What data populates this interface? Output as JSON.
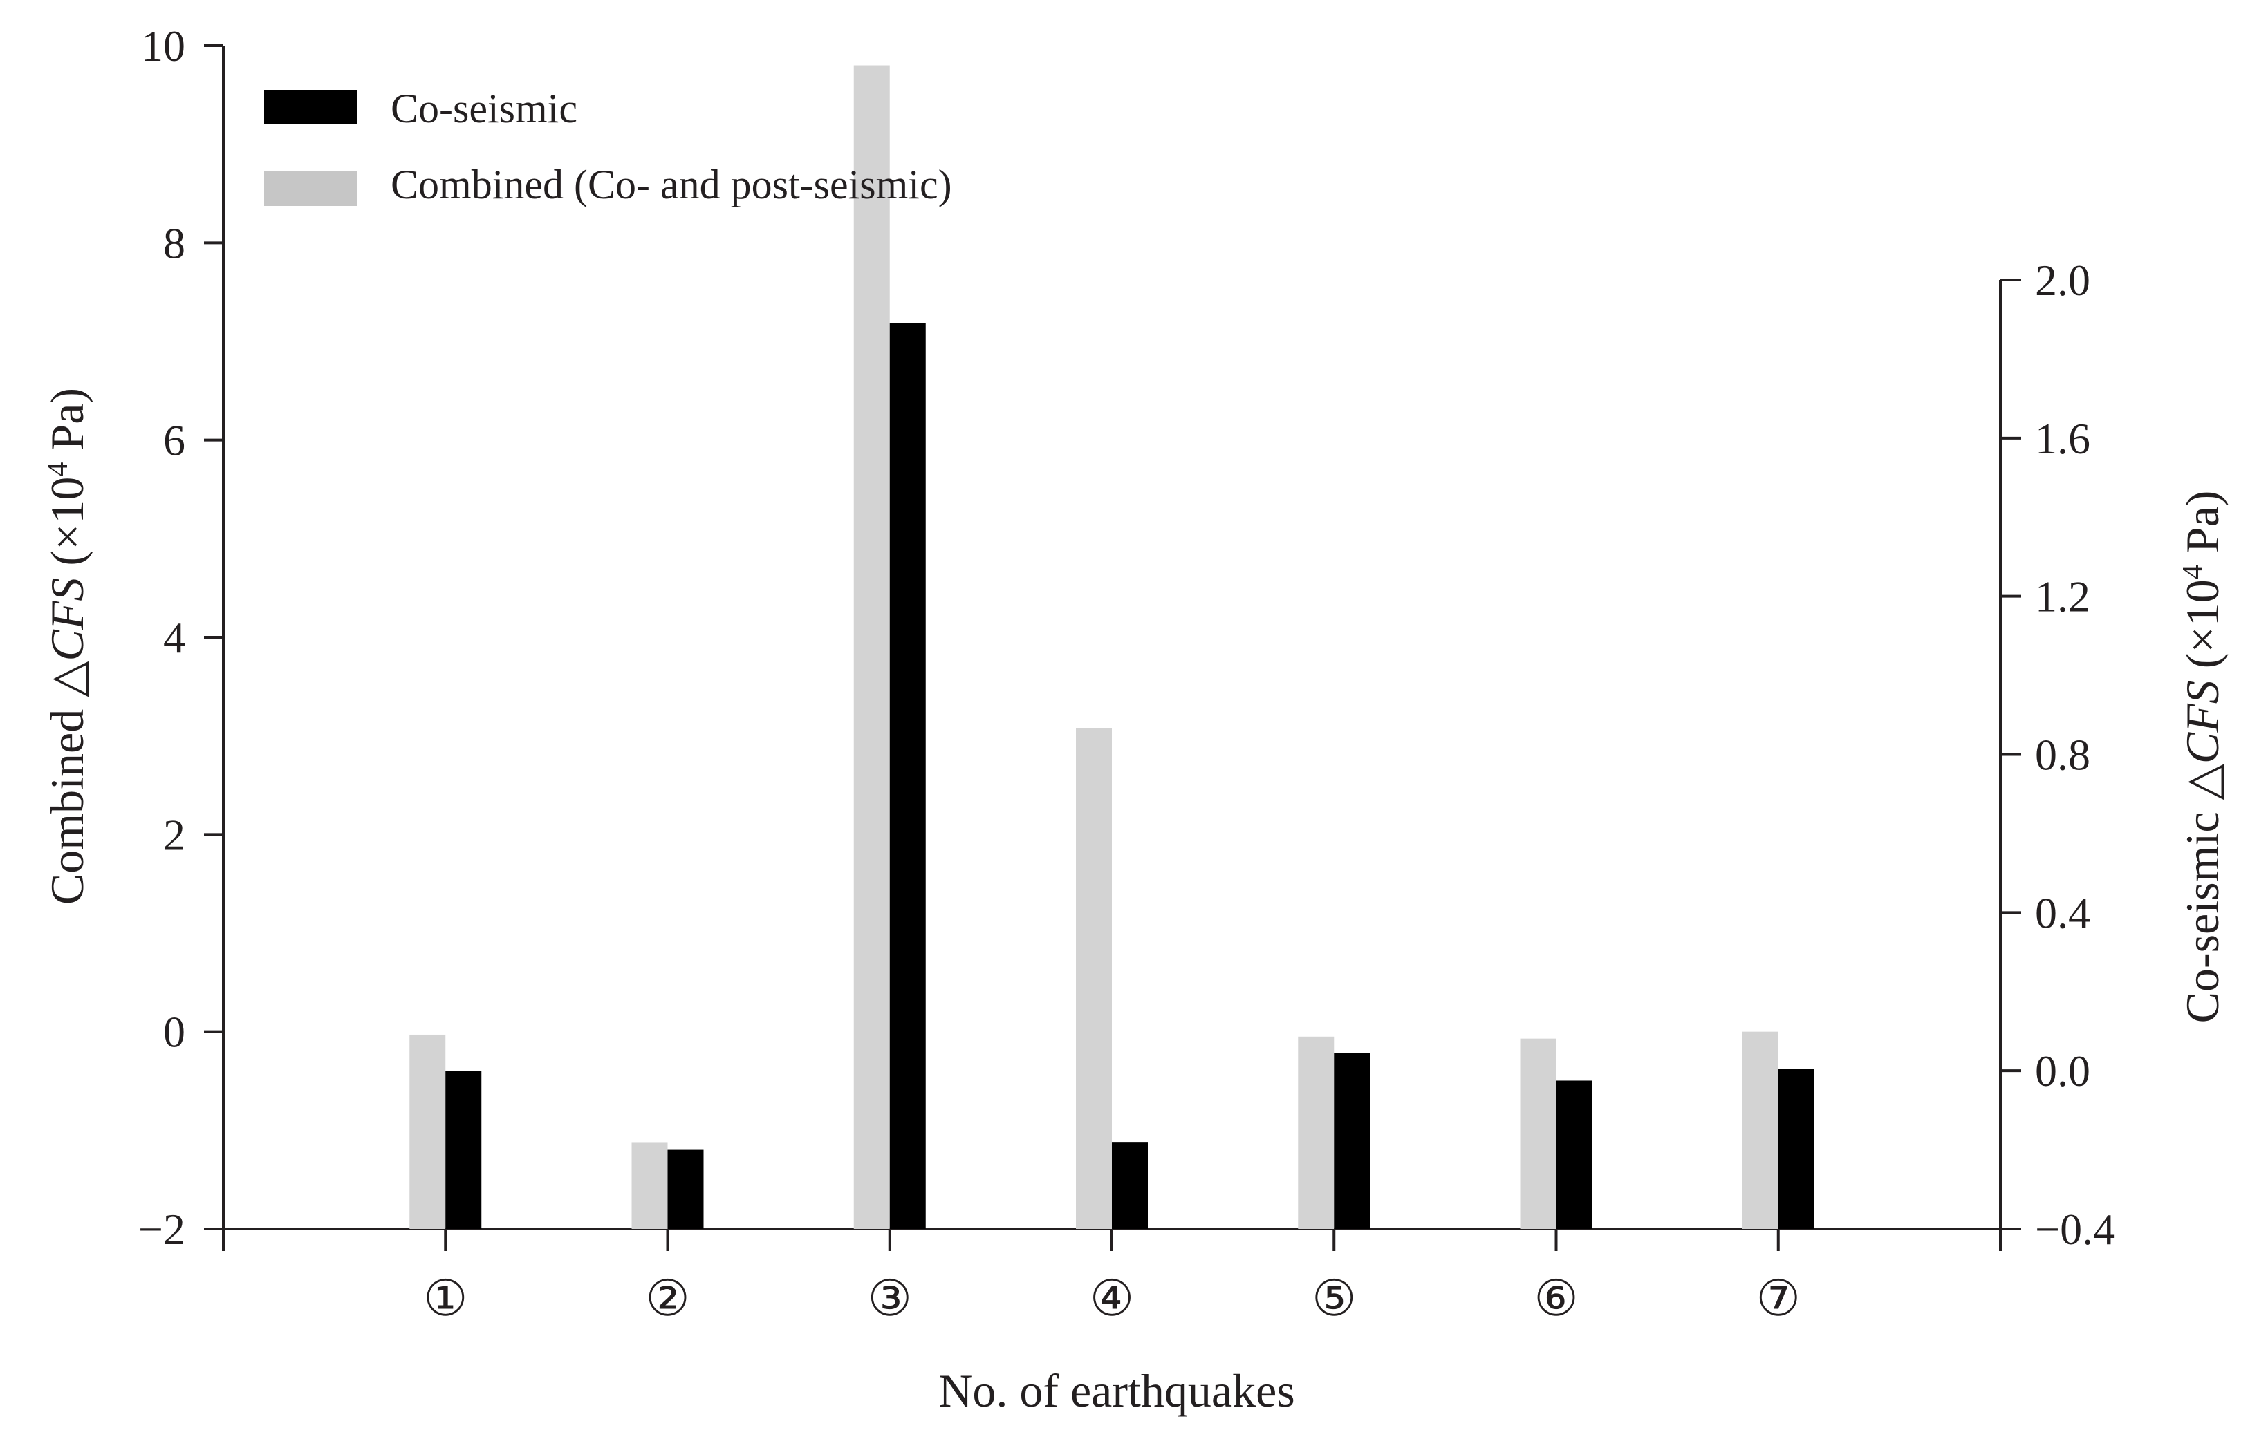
{
  "chart_data": {
    "type": "bar",
    "categories": [
      "①",
      "②",
      "③",
      "④",
      "⑤",
      "⑥",
      "⑦"
    ],
    "xlabel": "No. of earthquakes",
    "ylabel_left": {
      "prefix": "Combined △",
      "italic": "CFS",
      "unit_open": " (×10",
      "unit_exp": "4",
      "unit_close": " Pa)"
    },
    "ylabel_right": {
      "prefix": "Co-seismic △",
      "italic": "CFS",
      "unit_open": " (×10",
      "unit_exp": "4",
      "unit_close": " Pa)"
    },
    "ylim_left": [
      -2,
      10
    ],
    "yticks_left": [
      "−2",
      "0",
      "2",
      "4",
      "6",
      "8",
      "10"
    ],
    "yticks_left_values": [
      -2,
      0,
      2,
      4,
      6,
      8,
      10
    ],
    "ylim_right": [
      -0.4,
      2.0
    ],
    "yticks_right": [
      "−0.4",
      "0.0",
      "0.4",
      "0.8",
      "1.2",
      "1.6",
      "2.0"
    ],
    "yticks_right_values": [
      -0.4,
      0.0,
      0.4,
      0.8,
      1.2,
      1.6,
      2.0
    ],
    "series": [
      {
        "name": "Combined (Co- and post-seismic)",
        "axis": "left",
        "color": "#d3d3d3",
        "values": [
          -0.03,
          -1.12,
          9.8,
          3.08,
          -0.05,
          -0.07,
          0.0
        ]
      },
      {
        "name": "Co-seismic",
        "axis": "right",
        "color": "#000000",
        "values": [
          0.0,
          -0.2,
          1.89,
          -0.18,
          0.045,
          -0.025,
          0.005
        ]
      }
    ],
    "legend_position": "top-left",
    "grid": false
  }
}
